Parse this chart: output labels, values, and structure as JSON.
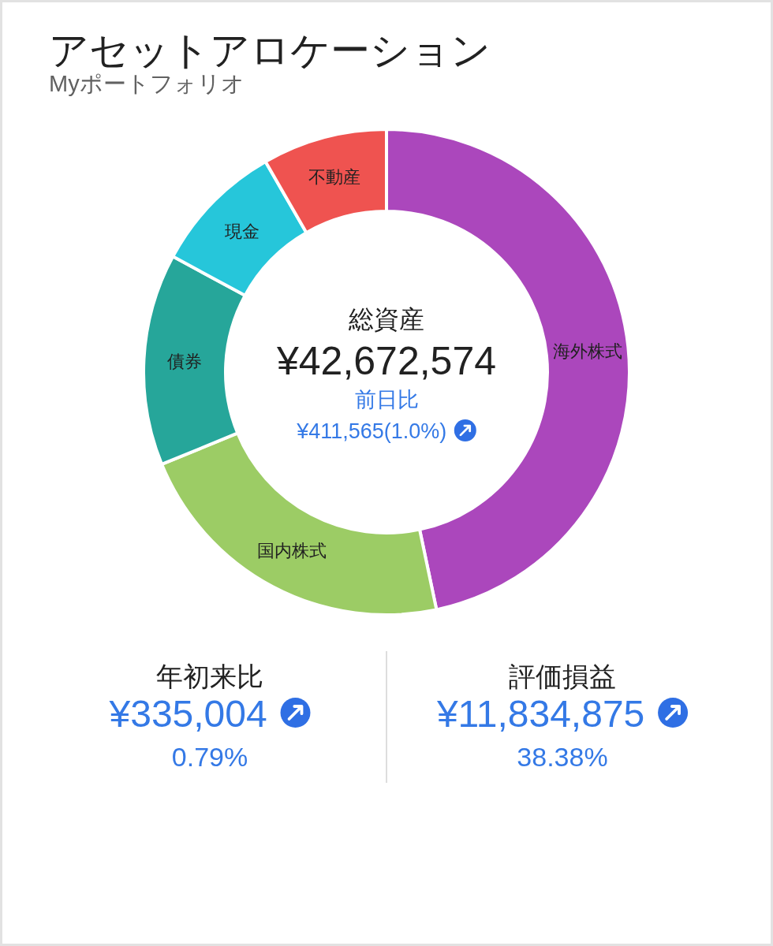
{
  "chart_data": {
    "type": "donut",
    "title": "アセットアロケーション",
    "subtitle": "Myポートフォリオ",
    "categories": [
      "海外株式",
      "国内株式",
      "債券",
      "現金",
      "不動産"
    ],
    "values": [
      46.7,
      22.1,
      14.1,
      8.8,
      8.3
    ],
    "colors": [
      "#ab47bc",
      "#9ccc65",
      "#26a69a",
      "#26c6da",
      "#ef5350"
    ],
    "annotations": [
      "総資産",
      "¥42,672,574",
      "前日比",
      "¥411,565(1.0%)",
      "年初来比",
      "¥335,004",
      "0.79%",
      "評価損益",
      "¥11,834,875",
      "38.38%"
    ]
  }
}
